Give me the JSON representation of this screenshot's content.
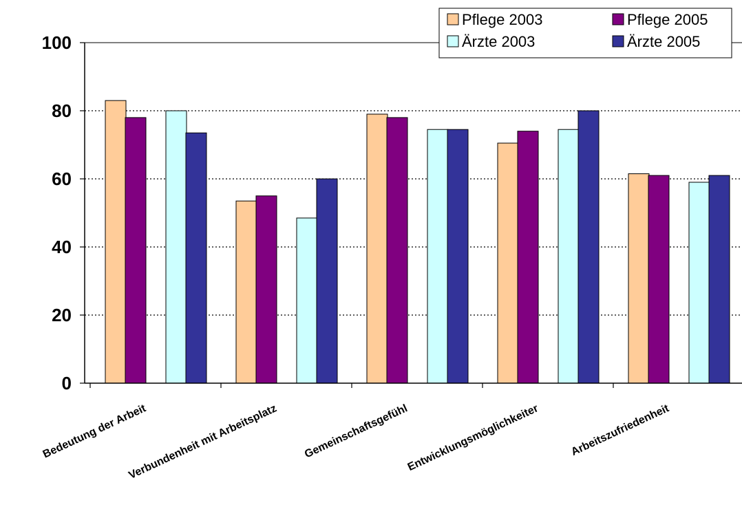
{
  "chart_data": {
    "type": "bar",
    "title": "",
    "xlabel": "",
    "ylabel": "",
    "ylim": [
      0,
      100
    ],
    "yticks": [
      "0",
      "20",
      "40",
      "60",
      "80",
      "100"
    ],
    "grid": "horizontal dotted",
    "legend_position": "top-right",
    "categories": [
      "Bedeutung der Arbeit",
      "Verbundenheit mit Arbeitsplatz",
      "Gemeinschaftsgefühl",
      "Entwicklungsmöglichkeiter",
      "Arbeitszufriedenheit"
    ],
    "series": [
      {
        "name": "Pflege 2003",
        "color": "#FFCC99",
        "values": [
          83,
          53.5,
          79,
          70.5,
          61.5
        ]
      },
      {
        "name": "Pflege 2005",
        "color": "#800080",
        "values": [
          78,
          55,
          78,
          74,
          61
        ]
      },
      {
        "name": "Ärzte 2003",
        "color": "#CCFFFF",
        "values": [
          80,
          48.5,
          74.5,
          74.5,
          59
        ]
      },
      {
        "name": "Ärzte 2005",
        "color": "#333399",
        "values": [
          73.5,
          60,
          74.5,
          80,
          61
        ]
      }
    ],
    "legend_order": [
      0,
      1,
      2,
      3
    ]
  }
}
